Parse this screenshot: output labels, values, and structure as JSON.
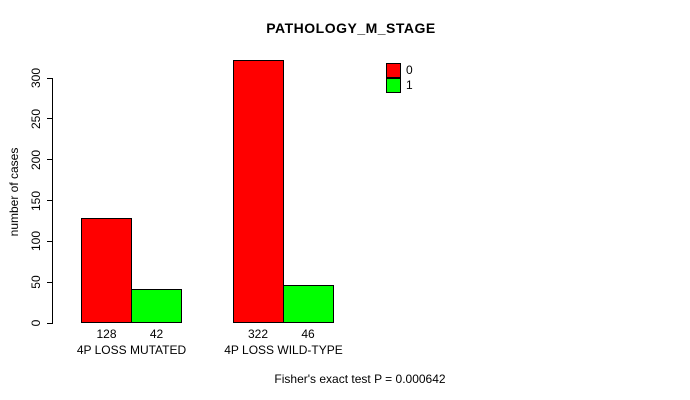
{
  "chart_data": {
    "type": "bar",
    "title": "PATHOLOGY_M_STAGE",
    "ylabel": "number of cases",
    "xlabel": "",
    "categories": [
      "4P LOSS MUTATED",
      "4P LOSS WILD-TYPE"
    ],
    "series": [
      {
        "name": "0",
        "color": "#ff0000",
        "values": [
          128,
          322
        ]
      },
      {
        "name": "1",
        "color": "#00ff00",
        "values": [
          42,
          46
        ]
      }
    ],
    "bar_value_labels": [
      [
        128,
        42
      ],
      [
        322,
        46
      ]
    ],
    "yticks": [
      0,
      50,
      100,
      150,
      200,
      250,
      300
    ],
    "ylim": [
      0,
      325
    ],
    "grid": false,
    "legend_position": "top-right",
    "annotation": "Fisher's exact test P = 0.000642"
  }
}
